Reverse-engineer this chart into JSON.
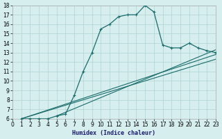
{
  "xlabel": "Humidex (Indice chaleur)",
  "ylabel": "",
  "bg_color": "#d6eeee",
  "grid_color": "#b0d4d4",
  "line_color": "#1a6b6b",
  "xlim": [
    0,
    23
  ],
  "ylim": [
    6,
    18
  ],
  "xticks": [
    0,
    1,
    2,
    3,
    4,
    5,
    6,
    7,
    8,
    9,
    10,
    11,
    12,
    13,
    14,
    15,
    16,
    17,
    18,
    19,
    20,
    21,
    22,
    23
  ],
  "yticks": [
    6,
    7,
    8,
    9,
    10,
    11,
    12,
    13,
    14,
    15,
    16,
    17,
    18
  ],
  "curve1_x": [
    1,
    2,
    3,
    4,
    5,
    6,
    7,
    8,
    9,
    10,
    11,
    12,
    13,
    14,
    15,
    16,
    17,
    18,
    19,
    20,
    21,
    22,
    23
  ],
  "curve1_y": [
    6,
    6,
    6,
    6,
    6.3,
    6.5,
    8.5,
    11,
    13,
    15.5,
    16,
    16.8,
    17,
    17,
    18,
    17.3,
    13.8,
    13.5,
    13.5,
    14,
    13.5,
    13.2,
    13
  ],
  "line1_x": [
    1,
    23
  ],
  "line1_y": [
    6,
    12.3
  ],
  "line2_x": [
    1,
    23
  ],
  "line2_y": [
    6,
    12.8
  ],
  "line3_x": [
    5,
    23
  ],
  "line3_y": [
    6.3,
    13.3
  ]
}
